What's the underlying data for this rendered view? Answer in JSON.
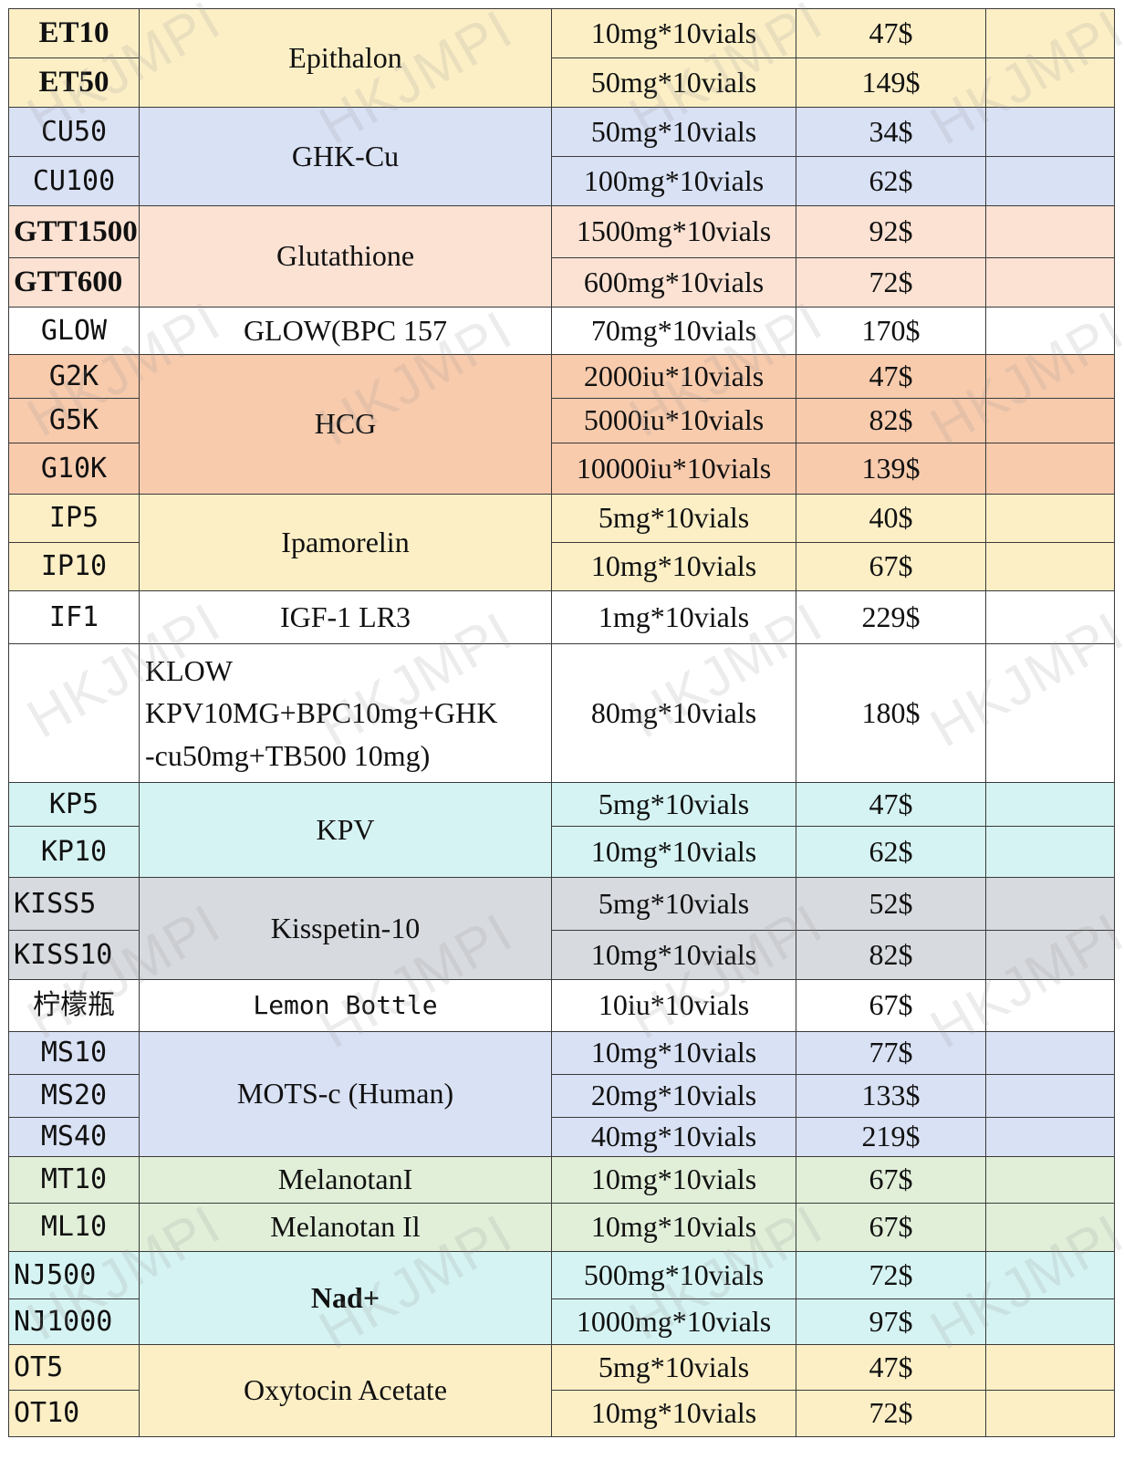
{
  "watermark": "HKJMPI",
  "colors": {
    "yellow": "#fcefc6",
    "blue": "#d9e1f4",
    "peach": "#fbe2d3",
    "white": "#ffffff",
    "orange": "#f8cbad",
    "cyan": "#d5f3f2",
    "grey": "#d7dadf",
    "green": "#e1efd9",
    "border": "#3a3a3a"
  },
  "groups": [
    {
      "name": "Epithalon",
      "items": [
        {
          "code": "ET10",
          "spec": "10mg*10vials",
          "price": "47$"
        },
        {
          "code": "ET50",
          "spec": "50mg*10vials",
          "price": "149$"
        }
      ]
    },
    {
      "name": "GHK-Cu",
      "items": [
        {
          "code": "CU50",
          "spec": "50mg*10vials",
          "price": "34$"
        },
        {
          "code": "CU100",
          "spec": "100mg*10vials",
          "price": "62$"
        }
      ]
    },
    {
      "name": "Glutathione",
      "items": [
        {
          "code": "GTT1500",
          "spec": "1500mg*10vials",
          "price": "92$"
        },
        {
          "code": "GTT600",
          "spec": "600mg*10vials",
          "price": "72$"
        }
      ]
    },
    {
      "name": "GLOW(BPC 157",
      "items": [
        {
          "code": "GLOW",
          "spec": "70mg*10vials",
          "price": "170$"
        }
      ]
    },
    {
      "name": "HCG",
      "items": [
        {
          "code": "G2K",
          "spec": "2000iu*10vials",
          "price": "47$"
        },
        {
          "code": "G5K",
          "spec": "5000iu*10vials",
          "price": "82$"
        },
        {
          "code": "G10K",
          "spec": "10000iu*10vials",
          "price": "139$"
        }
      ]
    },
    {
      "name": "Ipamorelin",
      "items": [
        {
          "code": "IP5",
          "spec": "5mg*10vials",
          "price": "40$"
        },
        {
          "code": "IP10",
          "spec": "10mg*10vials",
          "price": "67$"
        }
      ]
    },
    {
      "name": "IGF-1 LR3",
      "items": [
        {
          "code": "IF1",
          "spec": "1mg*10vials",
          "price": "229$"
        }
      ]
    },
    {
      "name_lines": [
        "KLOW",
        "KPV10MG+BPC10mg+GHK",
        "-cu50mg+TB500 10mg)"
      ],
      "items": [
        {
          "code": "",
          "spec": "80mg*10vials",
          "price": "180$"
        }
      ]
    },
    {
      "name": "KPV",
      "items": [
        {
          "code": "KP5",
          "spec": "5mg*10vials",
          "price": "47$"
        },
        {
          "code": "KP10",
          "spec": "10mg*10vials",
          "price": "62$"
        }
      ]
    },
    {
      "name": "Kisspetin-10",
      "items": [
        {
          "code": "KISS5",
          "spec": "5mg*10vials",
          "price": "52$"
        },
        {
          "code": "KISS10",
          "spec": "10mg*10vials",
          "price": "82$"
        }
      ]
    },
    {
      "name": "Lemon Bottle",
      "items": [
        {
          "code": "柠檬瓶",
          "spec": "10iu*10vials",
          "price": "67$"
        }
      ]
    },
    {
      "name": "MOTS-c (Human)",
      "items": [
        {
          "code": "MS10",
          "spec": "10mg*10vials",
          "price": "77$"
        },
        {
          "code": "MS20",
          "spec": "20mg*10vials",
          "price": "133$"
        },
        {
          "code": "MS40",
          "spec": "40mg*10vials",
          "price": "219$"
        }
      ]
    },
    {
      "name": "MelanotanI",
      "items": [
        {
          "code": "MT10",
          "spec": "10mg*10vials",
          "price": "67$"
        }
      ]
    },
    {
      "name": "Melanotan Il",
      "items": [
        {
          "code": "ML10",
          "spec": "10mg*10vials",
          "price": "67$"
        }
      ]
    },
    {
      "name": "Nad+",
      "items": [
        {
          "code": "NJ500",
          "spec": "500mg*10vials",
          "price": "72$"
        },
        {
          "code": "NJ1000",
          "spec": "1000mg*10vials",
          "price": "97$"
        }
      ]
    },
    {
      "name": "Oxytocin Acetate",
      "items": [
        {
          "code": "OT5",
          "spec": "5mg*10vials",
          "price": "47$"
        },
        {
          "code": "OT10",
          "spec": "10mg*10vials",
          "price": "72$"
        }
      ]
    }
  ]
}
